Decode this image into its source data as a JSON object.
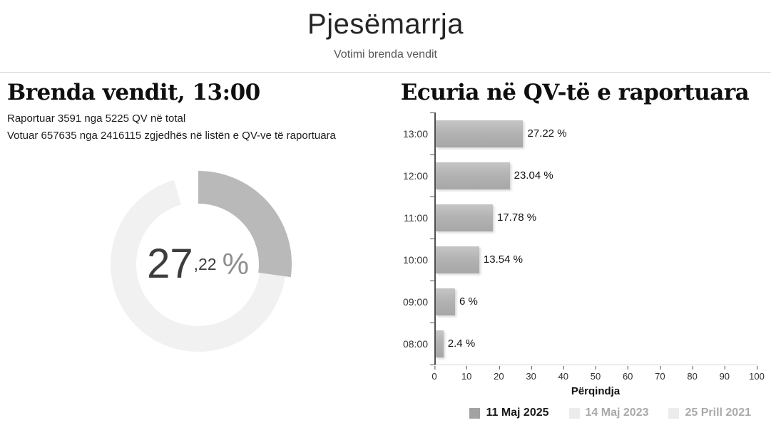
{
  "header": {
    "title": "Pjesëmarrja",
    "subtitle": "Votimi brenda vendit"
  },
  "left": {
    "heading": "Brenda vendit, 13:00",
    "line1": "Raportuar 3591 nga 5225 QV në total",
    "line2": "Votuar 657635 nga 2416115 zgjedhës në listën e QV-ve të raportuara",
    "donut": {
      "percent": 27.22,
      "int_part": "27",
      "dec_part": ",22",
      "percent_sign": "%",
      "fill_color": "#b9b9b9",
      "track_color": "#f1f1f1"
    }
  },
  "right": {
    "heading": "Ecuria në QV-të e raportuara"
  },
  "chart_data": {
    "type": "bar",
    "orientation": "horizontal",
    "title": "Ecuria në QV-të e raportuara",
    "categories": [
      "13:00",
      "12:00",
      "11:00",
      "10:00",
      "09:00",
      "08:00"
    ],
    "values": [
      27.22,
      23.04,
      17.78,
      13.54,
      6,
      2.4
    ],
    "value_labels": [
      "27.22 %",
      "23.04 %",
      "17.78 %",
      "13.54 %",
      "6 %",
      "2.4 %"
    ],
    "xlabel": "Përqindja",
    "xlim": [
      0,
      100
    ],
    "xticks": [
      0,
      10,
      20,
      30,
      40,
      50,
      60,
      70,
      80,
      90,
      100
    ],
    "grid": false,
    "bar_color": "#b3b3b3",
    "legend_position": "bottom-right",
    "legend": [
      {
        "label": "11 Maj 2025",
        "color": "#a2a2a2",
        "active": true
      },
      {
        "label": "14 Maj 2023",
        "color": "#ececec",
        "active": false
      },
      {
        "label": "25 Prill 2021",
        "color": "#ececec",
        "active": false
      }
    ]
  }
}
